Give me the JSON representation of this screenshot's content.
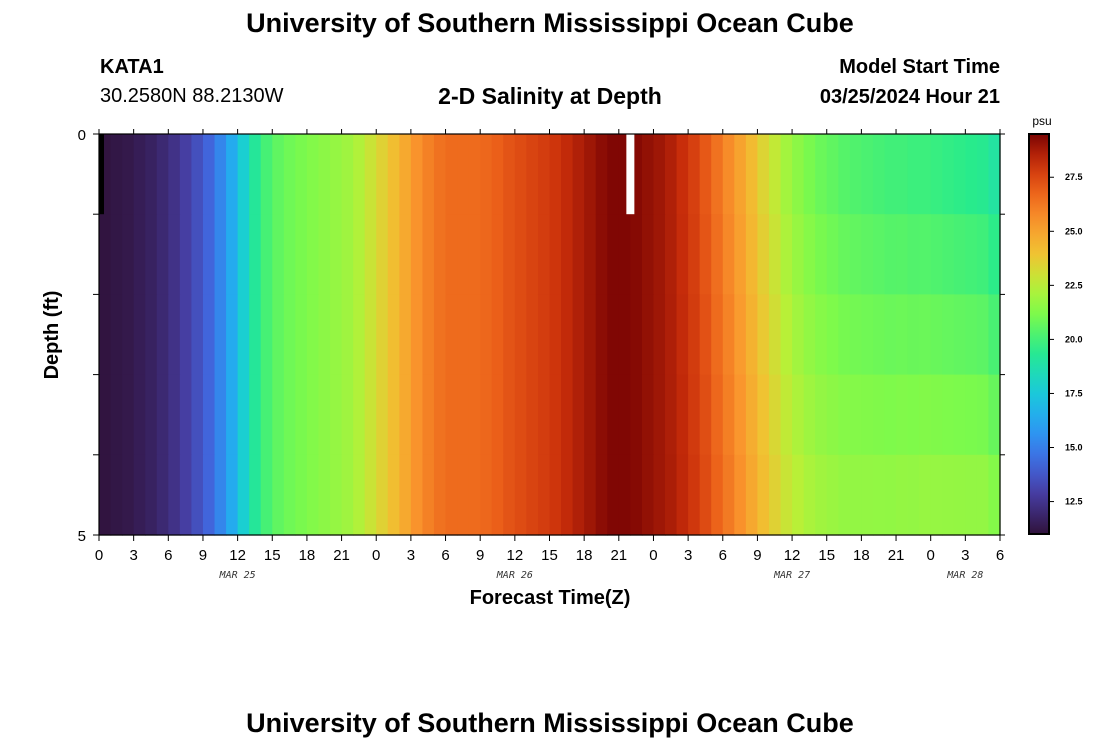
{
  "header": {
    "title_top": "University of Southern Mississippi Ocean Cube",
    "title_bottom": "University of Southern Mississippi Ocean Cube",
    "station": "KATA1",
    "coords": "30.2580N  88.2130W",
    "plot_title": "2-D Salinity at Depth",
    "start_label": "Model Start Time",
    "start_value": "03/25/2024 Hour 21"
  },
  "chart_data": {
    "type": "heatmap",
    "title": "2-D Salinity at Depth",
    "xlabel": "Forecast Time(Z)",
    "ylabel": "Depth (ft)",
    "colorbar_unit": "psu",
    "colorbar_range": [
      11,
      29.5
    ],
    "colorbar_ticks": [
      "12.5",
      "15.0",
      "17.5",
      "20.0",
      "22.5",
      "25.0",
      "27.5"
    ],
    "colorbar_tick_values": [
      12.5,
      15.0,
      17.5,
      20.0,
      22.5,
      25.0,
      27.5
    ],
    "x_range_hours": [
      0,
      78
    ],
    "x_tick_labels": [
      "0",
      "3",
      "6",
      "9",
      "12",
      "15",
      "18",
      "21",
      "0",
      "3",
      "6",
      "9",
      "12",
      "15",
      "18",
      "21",
      "0",
      "3",
      "6",
      "9",
      "12",
      "15",
      "18",
      "21",
      "0",
      "3",
      "6"
    ],
    "day_labels": [
      {
        "text": "MAR 25",
        "hour": 12
      },
      {
        "text": "MAR 26",
        "hour": 36
      },
      {
        "text": "MAR 27",
        "hour": 60
      },
      {
        "text": "MAR 28",
        "hour": 75
      }
    ],
    "y_tick_labels": [
      "0",
      "5"
    ],
    "y_range_ft": [
      0,
      5
    ],
    "depth_layers": 5,
    "profile_hours": [
      0,
      1,
      2,
      3,
      4,
      5,
      6,
      7,
      8,
      9,
      10,
      11,
      12,
      13,
      14,
      15,
      16,
      17,
      18,
      19,
      20,
      21,
      22,
      23,
      24,
      25,
      26,
      27,
      28,
      29,
      30,
      31,
      32,
      33,
      34,
      35,
      36,
      37,
      38,
      39,
      40,
      41,
      42,
      43,
      44,
      45,
      46,
      47,
      48,
      49,
      50,
      51,
      52,
      53,
      54,
      55,
      56,
      57,
      58,
      59,
      60,
      61,
      62,
      63,
      64,
      65,
      66,
      67,
      68,
      69,
      70,
      71,
      72,
      73,
      74,
      75,
      76,
      77,
      78
    ],
    "profile_salinity": [
      11.1,
      11.2,
      11.3,
      11.5,
      11.7,
      12.0,
      12.4,
      12.9,
      13.5,
      14.2,
      15.2,
      16.4,
      17.8,
      19.2,
      20.1,
      20.6,
      20.9,
      21.1,
      21.3,
      21.5,
      21.7,
      21.9,
      22.3,
      22.9,
      23.5,
      24.1,
      24.8,
      25.5,
      26.0,
      26.4,
      26.6,
      26.6,
      26.6,
      26.7,
      26.9,
      27.2,
      27.4,
      27.6,
      27.8,
      28.0,
      28.3,
      28.6,
      28.9,
      29.2,
      29.4,
      29.4,
      29.3,
      29.1,
      28.9,
      28.6,
      28.2,
      27.7,
      27.1,
      26.4,
      25.7,
      25.0,
      24.2,
      23.4,
      22.7,
      22.0,
      21.5,
      21.1,
      20.8,
      20.6,
      20.4,
      20.3,
      20.2,
      20.1,
      20.0,
      20.0,
      19.9,
      19.9,
      19.8,
      19.7,
      19.6,
      19.5,
      19.4,
      19.0,
      18.5
    ],
    "surface_layer_offsets": [
      0.0,
      -0.2,
      -0.4,
      -0.6,
      -0.8
    ],
    "annotation_markers": [
      {
        "type": "black-bar",
        "hour": 0.2,
        "layer": 0
      },
      {
        "type": "white-bar",
        "hour": 46,
        "layer": 0
      }
    ]
  }
}
